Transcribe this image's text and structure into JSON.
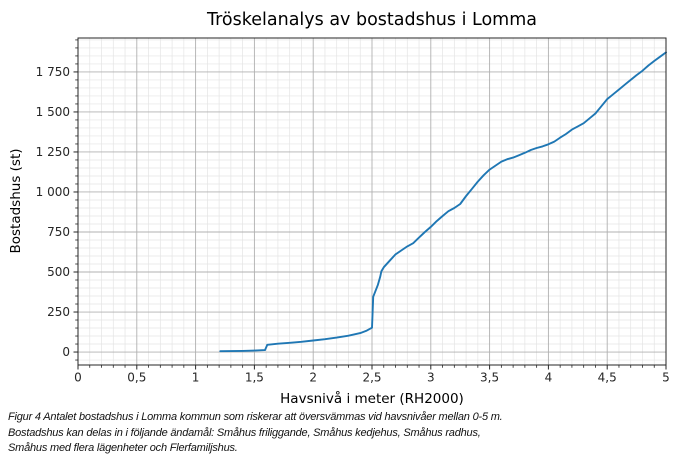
{
  "chart_data": {
    "type": "line",
    "title": "Tröskelanalys av bostadshus i Lomma",
    "xlabel": "Havsnivå i meter (RH2000)",
    "ylabel": "Bostadshus (st)",
    "xlim": [
      0,
      5
    ],
    "ylim": [
      -81,
      1962
    ],
    "xticks": {
      "values": [
        0,
        0.5,
        1,
        1.5,
        2,
        2.5,
        3,
        3.5,
        4,
        4.5,
        5
      ],
      "labels": [
        "0",
        "0,5",
        "1",
        "1,5",
        "2",
        "2,5",
        "3",
        "3,5",
        "4",
        "4,5",
        "5"
      ]
    },
    "yticks": {
      "values": [
        0,
        250,
        500,
        750,
        1000,
        1250,
        1500,
        1750
      ],
      "labels": [
        "0",
        "250",
        "500",
        "750",
        "1 000",
        "1 250",
        "1 500",
        "1 750"
      ]
    },
    "minor": {
      "x_step": 0.1,
      "y_step": 50
    },
    "grid": {
      "major_color": "#b0b0b0",
      "minor_color": "#e4e4e4",
      "on": true
    },
    "line_color": "#1f77b4",
    "axis_color": "#262626",
    "legend": "none",
    "series": [
      {
        "name": "Bostadshus",
        "points": [
          [
            1.21,
            5
          ],
          [
            1.3,
            6
          ],
          [
            1.4,
            7
          ],
          [
            1.5,
            9
          ],
          [
            1.59,
            12
          ],
          [
            1.61,
            45
          ],
          [
            1.7,
            52
          ],
          [
            1.8,
            58
          ],
          [
            1.9,
            64
          ],
          [
            2.0,
            72
          ],
          [
            2.1,
            80
          ],
          [
            2.2,
            90
          ],
          [
            2.3,
            102
          ],
          [
            2.4,
            118
          ],
          [
            2.45,
            132
          ],
          [
            2.5,
            152
          ],
          [
            2.51,
            345
          ],
          [
            2.55,
            420
          ],
          [
            2.57,
            470
          ],
          [
            2.58,
            505
          ],
          [
            2.6,
            530
          ],
          [
            2.65,
            570
          ],
          [
            2.7,
            610
          ],
          [
            2.75,
            635
          ],
          [
            2.8,
            660
          ],
          [
            2.85,
            680
          ],
          [
            2.9,
            715
          ],
          [
            2.95,
            750
          ],
          [
            3.0,
            782
          ],
          [
            3.05,
            818
          ],
          [
            3.1,
            850
          ],
          [
            3.15,
            880
          ],
          [
            3.2,
            900
          ],
          [
            3.25,
            925
          ],
          [
            3.3,
            975
          ],
          [
            3.35,
            1020
          ],
          [
            3.4,
            1065
          ],
          [
            3.45,
            1105
          ],
          [
            3.5,
            1140
          ],
          [
            3.55,
            1165
          ],
          [
            3.6,
            1190
          ],
          [
            3.65,
            1205
          ],
          [
            3.7,
            1215
          ],
          [
            3.75,
            1230
          ],
          [
            3.8,
            1245
          ],
          [
            3.85,
            1262
          ],
          [
            3.9,
            1275
          ],
          [
            3.95,
            1285
          ],
          [
            4.0,
            1298
          ],
          [
            4.05,
            1315
          ],
          [
            4.1,
            1340
          ],
          [
            4.15,
            1362
          ],
          [
            4.2,
            1390
          ],
          [
            4.25,
            1410
          ],
          [
            4.3,
            1430
          ],
          [
            4.35,
            1460
          ],
          [
            4.4,
            1490
          ],
          [
            4.45,
            1535
          ],
          [
            4.5,
            1580
          ],
          [
            4.55,
            1610
          ],
          [
            4.6,
            1640
          ],
          [
            4.65,
            1670
          ],
          [
            4.7,
            1700
          ],
          [
            4.75,
            1730
          ],
          [
            4.8,
            1758
          ],
          [
            4.85,
            1790
          ],
          [
            4.9,
            1818
          ],
          [
            4.95,
            1845
          ],
          [
            5.0,
            1872
          ]
        ]
      }
    ]
  },
  "caption": {
    "lines": [
      "Figur 4 Antalet bostadshus i Lomma kommun som riskerar att översvämmas vid havsnivåer mellan 0-5 m.",
      "Bostadshus kan delas in i följande ändamål: Småhus friliggande, Småhus kedjehus, Småhus radhus,",
      "Småhus med flera lägenheter och Flerfamiljshus."
    ]
  }
}
